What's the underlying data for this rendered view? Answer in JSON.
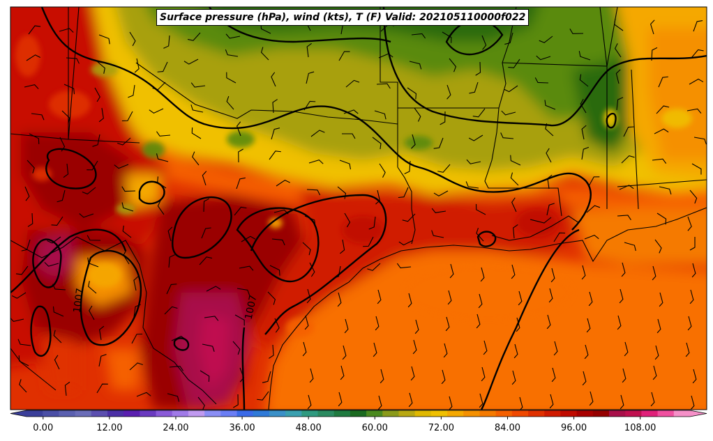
{
  "map": {
    "title": "Surface pressure (hPa), wind (kts), T (F) Valid: 202105110000f022",
    "variable_description": "Filled temperature (F) with isobars (hPa) and wind barbs (kts)",
    "isobar_labels": [
      "1007",
      "1007"
    ],
    "colorbar": {
      "tick_labels": [
        "0.00",
        "12.00",
        "24.00",
        "36.00",
        "48.00",
        "60.00",
        "72.00",
        "84.00",
        "96.00",
        "108.00"
      ],
      "range": [
        -3,
        117
      ],
      "step": 3,
      "colors": [
        "#3a3f9a",
        "#4a4fa6",
        "#5a60b0",
        "#6a6db8",
        "#5b4fb0",
        "#4b2fa6",
        "#5a1fb0",
        "#6a3ac0",
        "#8a5ad8",
        "#a07ae8",
        "#c09af0",
        "#8a8ef5",
        "#6a7ef5",
        "#3a6ae8",
        "#2f7ad8",
        "#3a90c8",
        "#3aa0b0",
        "#2f9a80",
        "#2a8a60",
        "#1f7a40",
        "#1a6a20",
        "#4a8a1f",
        "#8a9a1a",
        "#b8a812",
        "#e0b800",
        "#f0c000",
        "#f5a800",
        "#f59000",
        "#f57a00",
        "#f56000",
        "#f04800",
        "#e03000",
        "#d01a00",
        "#c00a00",
        "#a80000",
        "#950000",
        "#a8104a",
        "#c01050",
        "#e0207a",
        "#f050a0",
        "#f590c8"
      ]
    },
    "colors": {
      "deep_red": "#9a0000",
      "red": "#c80a00",
      "red_orange": "#e03000",
      "orange": "#f56000",
      "gulf_orange": "#f87000",
      "yellow_orange": "#f5a800",
      "yellow": "#f0c000",
      "olive": "#a8a010",
      "green": "#5a8a10",
      "dark_green": "#2a6a10",
      "magenta": "#a8104a"
    }
  }
}
